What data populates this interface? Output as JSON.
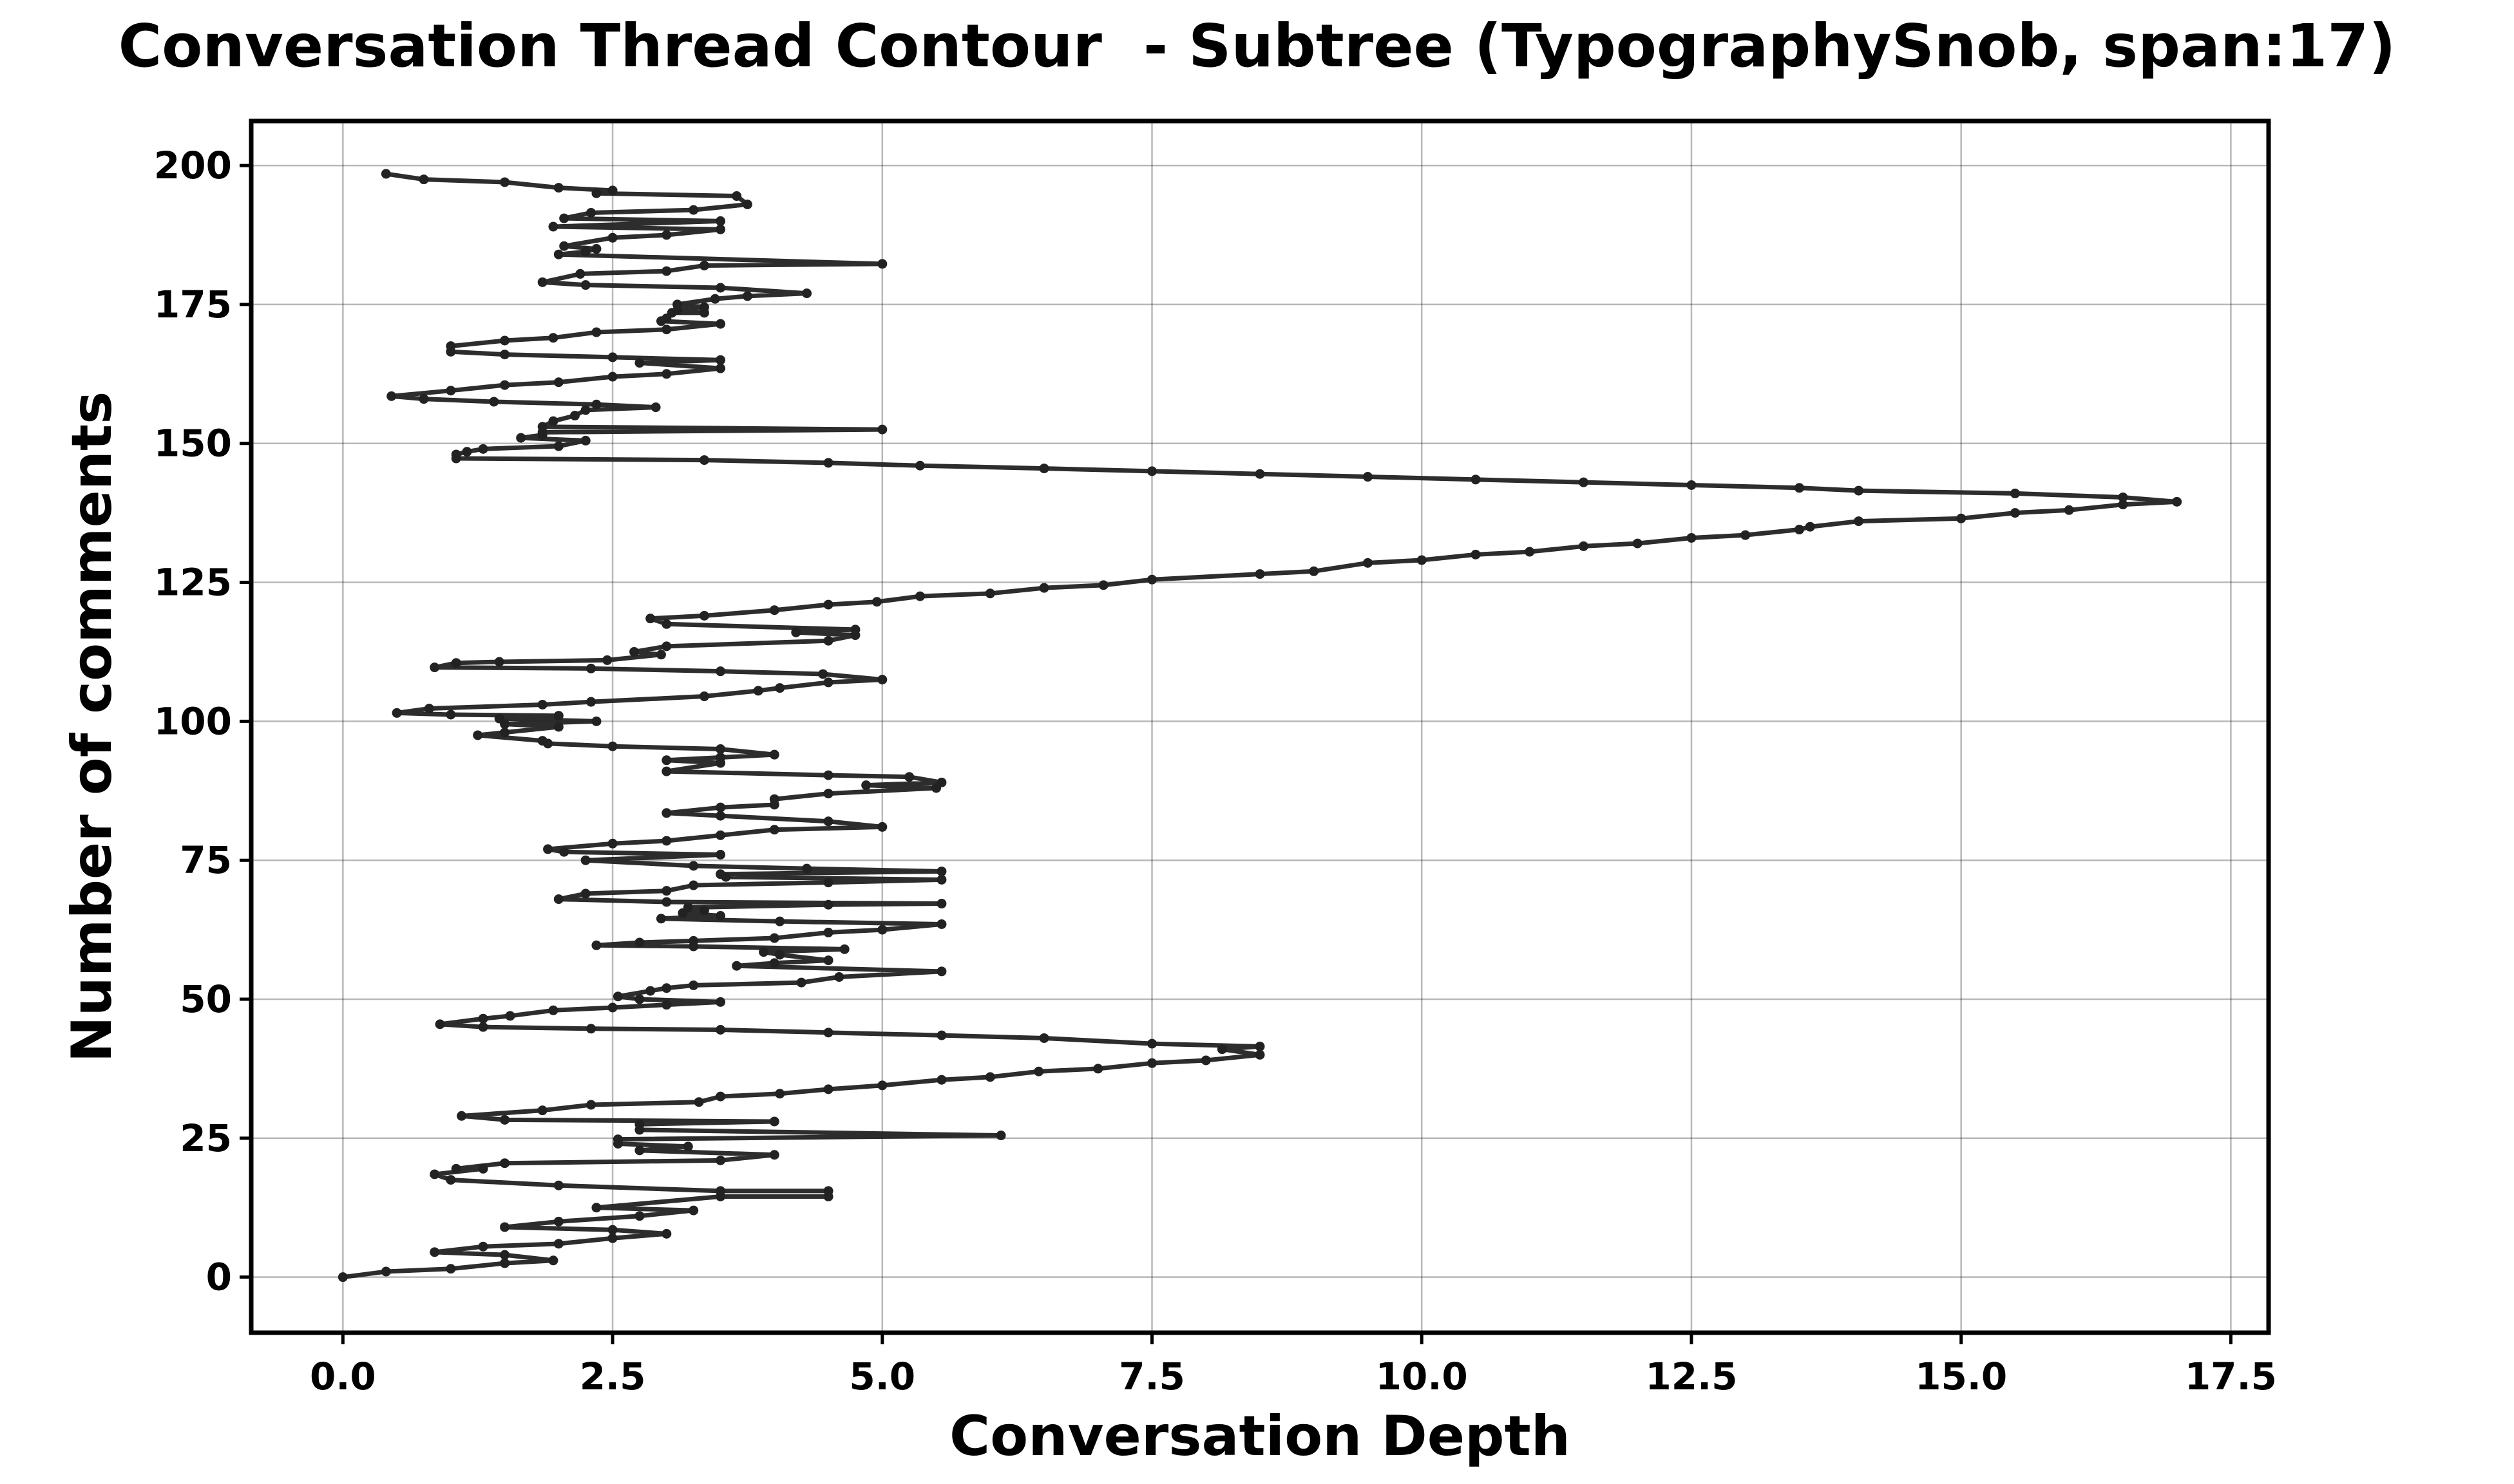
{
  "chart_data": {
    "type": "line",
    "title": "Conversation Thread Contour  - Subtree (TypographySnob, span:17)",
    "xlabel": "Conversation Depth",
    "ylabel": "Number of comments",
    "xlim": [
      -0.85,
      17.85
    ],
    "ylim": [
      -10,
      208
    ],
    "xticks": [
      0.0,
      2.5,
      5.0,
      7.5,
      10.0,
      12.5,
      15.0,
      17.5
    ],
    "xtick_labels": [
      "0.0",
      "2.5",
      "5.0",
      "7.5",
      "10.0",
      "12.5",
      "15.0",
      "17.5"
    ],
    "yticks": [
      0,
      25,
      50,
      75,
      100,
      125,
      150,
      175,
      200
    ],
    "ytick_labels": [
      "0",
      "25",
      "50",
      "75",
      "100",
      "125",
      "150",
      "175",
      "200"
    ],
    "grid": true,
    "series": [
      {
        "color": "#222222",
        "points": [
          [
            0.0,
            0
          ],
          [
            0.4,
            1
          ],
          [
            1.0,
            1.5
          ],
          [
            1.5,
            2.5
          ],
          [
            1.95,
            3
          ],
          [
            1.5,
            4
          ],
          [
            0.85,
            4.5
          ],
          [
            1.3,
            5.5
          ],
          [
            2.0,
            6
          ],
          [
            2.5,
            7
          ],
          [
            3.0,
            7.8
          ],
          [
            2.5,
            8.5
          ],
          [
            1.5,
            9
          ],
          [
            2.0,
            10
          ],
          [
            2.75,
            11
          ],
          [
            3.25,
            12
          ],
          [
            2.35,
            12.5
          ],
          [
            3.5,
            14.5
          ],
          [
            4.5,
            14.5
          ],
          [
            4.5,
            15.5
          ],
          [
            3.5,
            15.5
          ],
          [
            2.0,
            16.5
          ],
          [
            1.0,
            17.5
          ],
          [
            0.85,
            18.5
          ],
          [
            1.3,
            19.5
          ],
          [
            1.05,
            19.5
          ],
          [
            1.5,
            20.5
          ],
          [
            3.5,
            21.0
          ],
          [
            4.0,
            22.0
          ],
          [
            2.75,
            22.8
          ],
          [
            3.2,
            23.5
          ],
          [
            2.55,
            24.0
          ],
          [
            2.55,
            24.8
          ],
          [
            6.1,
            25.5
          ],
          [
            2.75,
            26.5
          ],
          [
            2.75,
            27.5
          ],
          [
            4.0,
            28.0
          ],
          [
            1.5,
            28.3
          ],
          [
            1.1,
            29.0
          ],
          [
            1.85,
            30.0
          ],
          [
            2.3,
            31.0
          ],
          [
            3.3,
            31.5
          ],
          [
            3.5,
            32.5
          ],
          [
            4.05,
            33.0
          ],
          [
            4.5,
            33.8
          ],
          [
            5.0,
            34.5
          ],
          [
            5.55,
            35.5
          ],
          [
            6.0,
            36.0
          ],
          [
            6.45,
            37.0
          ],
          [
            7.0,
            37.5
          ],
          [
            7.5,
            38.5
          ],
          [
            8.0,
            39.0
          ],
          [
            8.5,
            40.0
          ],
          [
            8.15,
            41.0
          ],
          [
            8.5,
            41.5
          ],
          [
            7.5,
            42.0
          ],
          [
            6.5,
            43.0
          ],
          [
            5.55,
            43.5
          ],
          [
            4.5,
            44.0
          ],
          [
            3.5,
            44.5
          ],
          [
            2.3,
            44.7
          ],
          [
            1.3,
            45.0
          ],
          [
            0.9,
            45.5
          ],
          [
            1.3,
            46.5
          ],
          [
            1.55,
            47.0
          ],
          [
            1.95,
            48.0
          ],
          [
            2.5,
            48.5
          ],
          [
            3.0,
            49.0
          ],
          [
            3.5,
            49.5
          ],
          [
            2.75,
            50.0
          ],
          [
            2.55,
            50.5
          ],
          [
            2.85,
            51.5
          ],
          [
            3.0,
            52.0
          ],
          [
            3.25,
            52.5
          ],
          [
            4.25,
            53.0
          ],
          [
            4.6,
            54.0
          ],
          [
            5.55,
            55.0
          ],
          [
            3.65,
            56.0
          ],
          [
            4.0,
            56.5
          ],
          [
            4.5,
            57.0
          ],
          [
            4.05,
            58.0
          ],
          [
            3.9,
            58.5
          ],
          [
            4.65,
            59.0
          ],
          [
            3.25,
            59.5
          ],
          [
            2.35,
            59.7
          ],
          [
            2.75,
            60.2
          ],
          [
            3.25,
            60.5
          ],
          [
            4.0,
            61.0
          ],
          [
            4.5,
            62.0
          ],
          [
            5.0,
            62.5
          ],
          [
            5.55,
            63.5
          ],
          [
            4.05,
            64.0
          ],
          [
            2.95,
            64.5
          ],
          [
            3.5,
            65.0
          ],
          [
            3.15,
            65.5
          ],
          [
            3.35,
            66.0
          ],
          [
            3.2,
            66.5
          ],
          [
            4.5,
            67.0
          ],
          [
            5.55,
            67.2
          ],
          [
            3.0,
            67.5
          ],
          [
            2.0,
            68.0
          ],
          [
            2.25,
            69.0
          ],
          [
            3.0,
            69.5
          ],
          [
            3.25,
            70.5
          ],
          [
            4.5,
            71.0
          ],
          [
            5.55,
            71.5
          ],
          [
            3.55,
            72.0
          ],
          [
            3.5,
            72.5
          ],
          [
            5.55,
            73.0
          ],
          [
            4.3,
            73.5
          ],
          [
            3.25,
            74.0
          ],
          [
            2.25,
            75.0
          ],
          [
            3.5,
            76.0
          ],
          [
            2.05,
            76.5
          ],
          [
            1.9,
            77.0
          ],
          [
            2.5,
            78.0
          ],
          [
            3.0,
            78.5
          ],
          [
            3.5,
            79.5
          ],
          [
            4.0,
            80.5
          ],
          [
            5.0,
            81.0
          ],
          [
            4.5,
            82.0
          ],
          [
            3.5,
            83.0
          ],
          [
            3.0,
            83.5
          ],
          [
            3.5,
            84.5
          ],
          [
            4.0,
            85.0
          ],
          [
            4.0,
            86.0
          ],
          [
            4.5,
            87.0
          ],
          [
            5.5,
            88.0
          ],
          [
            4.85,
            88.5
          ],
          [
            5.55,
            89.0
          ],
          [
            5.25,
            90.0
          ],
          [
            4.5,
            90.3
          ],
          [
            3.0,
            91.0
          ],
          [
            3.5,
            92.5
          ],
          [
            3.0,
            93.0
          ],
          [
            3.5,
            93.5
          ],
          [
            4.0,
            94.0
          ],
          [
            3.5,
            95.0
          ],
          [
            2.5,
            95.5
          ],
          [
            1.9,
            96.0
          ],
          [
            1.85,
            96.5
          ],
          [
            1.25,
            97.5
          ],
          [
            1.5,
            98.0
          ],
          [
            2.0,
            99.0
          ],
          [
            1.5,
            99.5
          ],
          [
            2.35,
            100.0
          ],
          [
            1.45,
            100.5
          ],
          [
            2.0,
            101.0
          ],
          [
            1.0,
            101.2
          ],
          [
            0.5,
            101.5
          ],
          [
            0.8,
            102.3
          ],
          [
            1.85,
            103.0
          ],
          [
            2.3,
            103.5
          ],
          [
            3.35,
            104.5
          ],
          [
            3.85,
            105.5
          ],
          [
            4.05,
            106.0
          ],
          [
            4.5,
            107.0
          ],
          [
            5.0,
            107.5
          ],
          [
            4.45,
            108.5
          ],
          [
            3.5,
            109.0
          ],
          [
            2.3,
            109.5
          ],
          [
            0.85,
            109.7
          ],
          [
            1.05,
            110.5
          ],
          [
            1.45,
            110.7
          ],
          [
            2.45,
            111.0
          ],
          [
            2.95,
            112.0
          ],
          [
            2.7,
            112.5
          ],
          [
            3.0,
            113.5
          ],
          [
            4.5,
            114.5
          ],
          [
            4.75,
            115.5
          ],
          [
            4.2,
            116.0
          ],
          [
            4.75,
            116.5
          ],
          [
            3.0,
            117.5
          ],
          [
            2.85,
            118.5
          ],
          [
            3.35,
            119.0
          ],
          [
            4.0,
            120.0
          ],
          [
            4.5,
            121.0
          ],
          [
            4.95,
            121.5
          ],
          [
            5.35,
            122.5
          ],
          [
            6.0,
            123.0
          ],
          [
            6.5,
            124.0
          ],
          [
            7.05,
            124.5
          ],
          [
            7.5,
            125.5
          ],
          [
            8.5,
            126.5
          ],
          [
            9.0,
            127.0
          ],
          [
            9.5,
            128.5
          ],
          [
            10.0,
            129.0
          ],
          [
            10.5,
            130.0
          ],
          [
            11.0,
            130.5
          ],
          [
            11.5,
            131.5
          ],
          [
            12.0,
            132.0
          ],
          [
            12.5,
            133.0
          ],
          [
            13.0,
            133.5
          ],
          [
            13.5,
            134.5
          ],
          [
            13.6,
            135.0
          ],
          [
            14.05,
            136.0
          ],
          [
            15.0,
            136.5
          ],
          [
            15.5,
            137.5
          ],
          [
            16.0,
            138.0
          ],
          [
            16.5,
            139.0
          ],
          [
            17.0,
            139.5
          ],
          [
            16.5,
            140.3
          ],
          [
            15.5,
            141.0
          ],
          [
            14.05,
            141.5
          ],
          [
            13.5,
            142.0
          ],
          [
            12.5,
            142.5
          ],
          [
            11.5,
            143.0
          ],
          [
            10.5,
            143.5
          ],
          [
            9.5,
            144.0
          ],
          [
            8.5,
            144.5
          ],
          [
            7.5,
            145.0
          ],
          [
            6.5,
            145.5
          ],
          [
            5.35,
            146.0
          ],
          [
            4.5,
            146.5
          ],
          [
            3.35,
            147.0
          ],
          [
            1.05,
            147.3
          ],
          [
            1.05,
            148.0
          ],
          [
            1.15,
            148.5
          ],
          [
            1.3,
            149.0
          ],
          [
            2.0,
            149.5
          ],
          [
            2.25,
            150.5
          ],
          [
            1.65,
            151.0
          ],
          [
            1.85,
            151.5
          ],
          [
            1.85,
            152.0
          ],
          [
            5.0,
            152.5
          ],
          [
            1.85,
            153.0
          ],
          [
            1.95,
            154.0
          ],
          [
            2.15,
            155.0
          ],
          [
            2.25,
            156.0
          ],
          [
            2.9,
            156.5
          ],
          [
            2.35,
            157.0
          ],
          [
            1.4,
            157.5
          ],
          [
            0.75,
            158.0
          ],
          [
            0.45,
            158.5
          ],
          [
            1.0,
            159.5
          ],
          [
            1.5,
            160.5
          ],
          [
            2.0,
            161.0
          ],
          [
            2.5,
            162.0
          ],
          [
            3.0,
            162.5
          ],
          [
            3.5,
            163.5
          ],
          [
            2.75,
            164.5
          ],
          [
            3.5,
            165.0
          ],
          [
            2.5,
            165.5
          ],
          [
            1.5,
            166.0
          ],
          [
            1.0,
            166.5
          ],
          [
            1.0,
            167.5
          ],
          [
            1.5,
            168.5
          ],
          [
            1.95,
            169.0
          ],
          [
            2.35,
            170.0
          ],
          [
            3.0,
            170.5
          ],
          [
            3.5,
            171.5
          ],
          [
            2.95,
            172.0
          ],
          [
            3.0,
            172.5
          ],
          [
            3.05,
            173.5
          ],
          [
            3.35,
            173.5
          ],
          [
            3.1,
            174.0
          ],
          [
            3.35,
            174.5
          ],
          [
            3.1,
            175.0
          ],
          [
            3.45,
            176.0
          ],
          [
            3.75,
            176.5
          ],
          [
            4.3,
            177.0
          ],
          [
            3.5,
            178.0
          ],
          [
            2.25,
            178.5
          ],
          [
            1.85,
            179.0
          ],
          [
            2.2,
            180.5
          ],
          [
            3.0,
            181.0
          ],
          [
            3.35,
            182.0
          ],
          [
            5.0,
            182.3
          ],
          [
            2.0,
            184.0
          ],
          [
            2.25,
            184.5
          ],
          [
            2.35,
            185.0
          ],
          [
            2.05,
            185.5
          ],
          [
            2.5,
            187.0
          ],
          [
            3.0,
            187.5
          ],
          [
            3.5,
            188.5
          ],
          [
            1.95,
            189.0
          ],
          [
            3.5,
            190.0
          ],
          [
            2.05,
            190.5
          ],
          [
            2.3,
            191.5
          ],
          [
            3.25,
            192.0
          ],
          [
            3.75,
            193.0
          ],
          [
            3.65,
            194.5
          ],
          [
            2.35,
            195.0
          ],
          [
            2.5,
            195.5
          ],
          [
            2.0,
            196.0
          ],
          [
            1.5,
            197.0
          ],
          [
            0.75,
            197.5
          ],
          [
            0.4,
            198.5
          ]
        ]
      }
    ]
  }
}
